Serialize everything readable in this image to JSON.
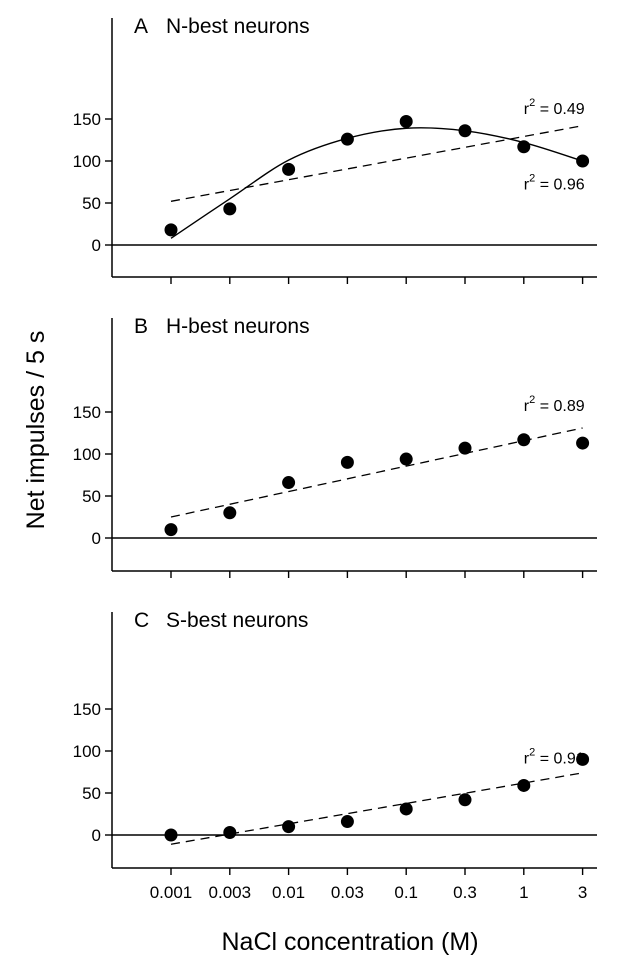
{
  "chart_data": {
    "type": "scatter",
    "ylabel": "Net impulses / 5 s",
    "xlabel": "NaCl concentration (M)",
    "x_tick_labels": [
      "0.001",
      "0.003",
      "0.01",
      "0.03",
      "0.1",
      "0.3",
      "1",
      "3"
    ],
    "x_scale": "log",
    "y_ticks": [
      0,
      50,
      100,
      150
    ],
    "ylim": [
      -25,
      175
    ],
    "grid": false,
    "panels": [
      {
        "letter": "A",
        "title": "N-best neurons",
        "series": [
          {
            "type": "scatter",
            "x": [
              0.001,
              0.003,
              0.01,
              0.03,
              0.1,
              0.3,
              1,
              3
            ],
            "y": [
              18,
              43,
              90,
              126,
              147,
              136,
              117,
              100
            ]
          },
          {
            "type": "line",
            "style": "solid",
            "fit": "quadratic",
            "x_start": 0.001,
            "x_end": 3,
            "points": [
              [
                0.001,
                8
              ],
              [
                0.003,
                55
              ],
              [
                0.01,
                101
              ],
              [
                0.03,
                127
              ],
              [
                0.1,
                139
              ],
              [
                0.3,
                136
              ],
              [
                1,
                122
              ],
              [
                3,
                100
              ]
            ]
          },
          {
            "type": "line",
            "style": "dashed",
            "fit": "linear",
            "x_start": 0.001,
            "x_end": 3,
            "y_start": 52,
            "y_end": 142
          }
        ],
        "annotations": [
          {
            "text": "r² = 0.49",
            "base": "r",
            "sup": "2",
            "rest": " = 0.49",
            "near_x": 1,
            "near_y": 156
          },
          {
            "text": "r² = 0.96",
            "base": "r",
            "sup": "2",
            "rest": " = 0.96",
            "near_x": 1,
            "near_y": 66
          }
        ]
      },
      {
        "letter": "B",
        "title": "H-best neurons",
        "series": [
          {
            "type": "scatter",
            "x": [
              0.001,
              0.003,
              0.01,
              0.03,
              0.1,
              0.3,
              1,
              3
            ],
            "y": [
              10,
              30,
              66,
              90,
              94,
              107,
              117,
              113
            ]
          },
          {
            "type": "line",
            "style": "dashed",
            "fit": "linear",
            "x_start": 0.001,
            "x_end": 3,
            "y_start": 25,
            "y_end": 131
          }
        ],
        "annotations": [
          {
            "text": "r² = 0.89",
            "base": "r",
            "sup": "2",
            "rest": " = 0.89",
            "near_x": 1,
            "near_y": 151
          }
        ]
      },
      {
        "letter": "C",
        "title": "S-best neurons",
        "series": [
          {
            "type": "scatter",
            "x": [
              0.001,
              0.003,
              0.01,
              0.03,
              0.1,
              0.3,
              1,
              3
            ],
            "y": [
              0,
              3,
              10,
              16,
              31,
              42,
              59,
              90
            ]
          },
          {
            "type": "line",
            "style": "dashed",
            "fit": "linear",
            "x_start": 0.001,
            "x_end": 3,
            "y_start": -11,
            "y_end": 74
          }
        ],
        "annotations": [
          {
            "text": "r² = 0.91",
            "base": "r",
            "sup": "2",
            "rest": " = 0.91",
            "near_x": 1,
            "near_y": 85
          }
        ]
      }
    ]
  }
}
